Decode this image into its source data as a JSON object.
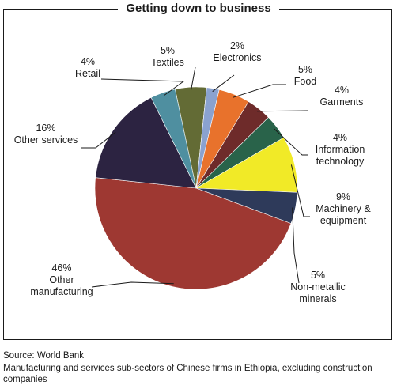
{
  "title": "Getting down to business",
  "source": "Source: World Bank",
  "note": "Manufacturing and services sub-sectors of Chinese firms in Ethiopia, excluding construction companies",
  "chart_data": {
    "type": "pie",
    "title": "Getting down to business",
    "start_angle_deg": -12,
    "direction": "clockwise",
    "slices": [
      {
        "category": "Textiles",
        "value": 5,
        "value_label": "5%",
        "color": "#636b35"
      },
      {
        "category": "Electronics",
        "value": 2,
        "value_label": "2%",
        "color": "#8aa2cf"
      },
      {
        "category": "Food",
        "value": 5,
        "value_label": "5%",
        "color": "#e8722c"
      },
      {
        "category": "Garments",
        "value": 4,
        "value_label": "4%",
        "color": "#6e2b2a"
      },
      {
        "category": "Information technology",
        "value": 4,
        "value_label": "4%",
        "color": "#29634a"
      },
      {
        "category": "Machinery & equipment",
        "value": 9,
        "value_label": "9%",
        "color": "#f1ea27"
      },
      {
        "category": "Non-metallic minerals",
        "value": 5,
        "value_label": "5%",
        "color": "#2e3a5a"
      },
      {
        "category": "Other manufacturing",
        "value": 46,
        "value_label": "46%",
        "color": "#9e3832"
      },
      {
        "category": "Other services",
        "value": 16,
        "value_label": "16%",
        "color": "#2c2341"
      },
      {
        "category": "Retail",
        "value": 4,
        "value_label": "4%",
        "color": "#4f8fa0"
      }
    ]
  }
}
